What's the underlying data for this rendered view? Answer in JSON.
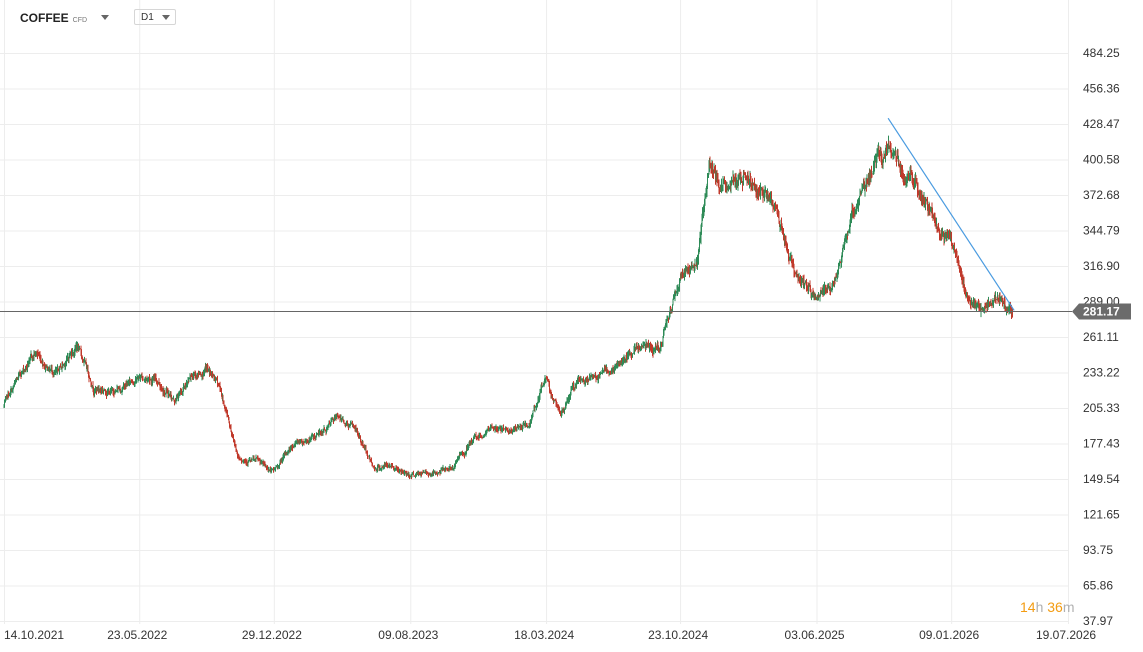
{
  "toolbar": {
    "symbol": "COFFEE",
    "symbol_type": "CFD",
    "timeframe": "D1"
  },
  "colors": {
    "up": "#2e8b57",
    "down": "#c0392b",
    "trendline": "#4a9be0",
    "price_line": "#666666",
    "price_label_bg": "#6b6b6b",
    "grid": "#ededed",
    "timer": "#f39c12"
  },
  "y_axis": {
    "labels": [
      "484.25",
      "456.36",
      "428.47",
      "400.58",
      "372.68",
      "344.79",
      "316.90",
      "289.00",
      "261.11",
      "233.22",
      "205.33",
      "177.43",
      "149.54",
      "121.65",
      "93.75",
      "65.86",
      "37.97"
    ]
  },
  "x_axis": {
    "labels": [
      "14.10.2021",
      "23.05.2022",
      "29.12.2022",
      "09.08.2023",
      "18.03.2024",
      "23.10.2024",
      "03.06.2025",
      "09.01.2026",
      "19.07.2026"
    ]
  },
  "current_price": "281.17",
  "timer": {
    "hours": "14",
    "hours_unit": "h",
    "minutes": "36",
    "minutes_unit": "m"
  },
  "chart_data": {
    "type": "candlestick",
    "price_range": [
      37.97,
      484.25
    ],
    "path_anchors": [
      {
        "date": "2021-10-14",
        "price": 207
      },
      {
        "date": "2021-11-15",
        "price": 235
      },
      {
        "date": "2021-12-05",
        "price": 248
      },
      {
        "date": "2022-01-10",
        "price": 232
      },
      {
        "date": "2022-02-10",
        "price": 255
      },
      {
        "date": "2022-03-10",
        "price": 222
      },
      {
        "date": "2022-04-10",
        "price": 218
      },
      {
        "date": "2022-05-23",
        "price": 230
      },
      {
        "date": "2022-06-20",
        "price": 228
      },
      {
        "date": "2022-07-20",
        "price": 212
      },
      {
        "date": "2022-08-20",
        "price": 230
      },
      {
        "date": "2022-09-10",
        "price": 236
      },
      {
        "date": "2022-10-01",
        "price": 222
      },
      {
        "date": "2022-11-01",
        "price": 168
      },
      {
        "date": "2022-12-01",
        "price": 163
      },
      {
        "date": "2022-12-29",
        "price": 155
      },
      {
        "date": "2023-02-01",
        "price": 178
      },
      {
        "date": "2023-03-10",
        "price": 183
      },
      {
        "date": "2023-04-15",
        "price": 198
      },
      {
        "date": "2023-05-10",
        "price": 190
      },
      {
        "date": "2023-06-10",
        "price": 159
      },
      {
        "date": "2023-07-10",
        "price": 160
      },
      {
        "date": "2023-08-09",
        "price": 153
      },
      {
        "date": "2023-09-20",
        "price": 155
      },
      {
        "date": "2023-10-20",
        "price": 160
      },
      {
        "date": "2023-11-20",
        "price": 180
      },
      {
        "date": "2023-12-20",
        "price": 190
      },
      {
        "date": "2024-01-20",
        "price": 188
      },
      {
        "date": "2024-02-20",
        "price": 192
      },
      {
        "date": "2024-03-18",
        "price": 230
      },
      {
        "date": "2024-04-10",
        "price": 198
      },
      {
        "date": "2024-05-01",
        "price": 222
      },
      {
        "date": "2024-06-01",
        "price": 228
      },
      {
        "date": "2024-07-01",
        "price": 235
      },
      {
        "date": "2024-08-01",
        "price": 244
      },
      {
        "date": "2024-09-01",
        "price": 258
      },
      {
        "date": "2024-09-20",
        "price": 252
      },
      {
        "date": "2024-10-23",
        "price": 310
      },
      {
        "date": "2024-11-20",
        "price": 320
      },
      {
        "date": "2024-12-10",
        "price": 395
      },
      {
        "date": "2025-01-10",
        "price": 380
      },
      {
        "date": "2025-02-10",
        "price": 390
      },
      {
        "date": "2025-03-01",
        "price": 380
      },
      {
        "date": "2025-04-01",
        "price": 355
      },
      {
        "date": "2025-05-01",
        "price": 310
      },
      {
        "date": "2025-06-03",
        "price": 290
      },
      {
        "date": "2025-07-01",
        "price": 300
      },
      {
        "date": "2025-08-01",
        "price": 360
      },
      {
        "date": "2025-09-01",
        "price": 395
      },
      {
        "date": "2025-10-01",
        "price": 410
      },
      {
        "date": "2025-10-25",
        "price": 390
      },
      {
        "date": "2025-11-20",
        "price": 375
      },
      {
        "date": "2025-12-15",
        "price": 355
      },
      {
        "date": "2026-01-09",
        "price": 340
      },
      {
        "date": "2026-02-05",
        "price": 290
      },
      {
        "date": "2026-03-01",
        "price": 285
      },
      {
        "date": "2026-04-01",
        "price": 292
      },
      {
        "date": "2026-04-20",
        "price": 281
      }
    ],
    "trendline": [
      {
        "date": "2025-09-28",
        "price": 433
      },
      {
        "date": "2026-04-22",
        "price": 282
      }
    ],
    "current_price": 281.17
  }
}
